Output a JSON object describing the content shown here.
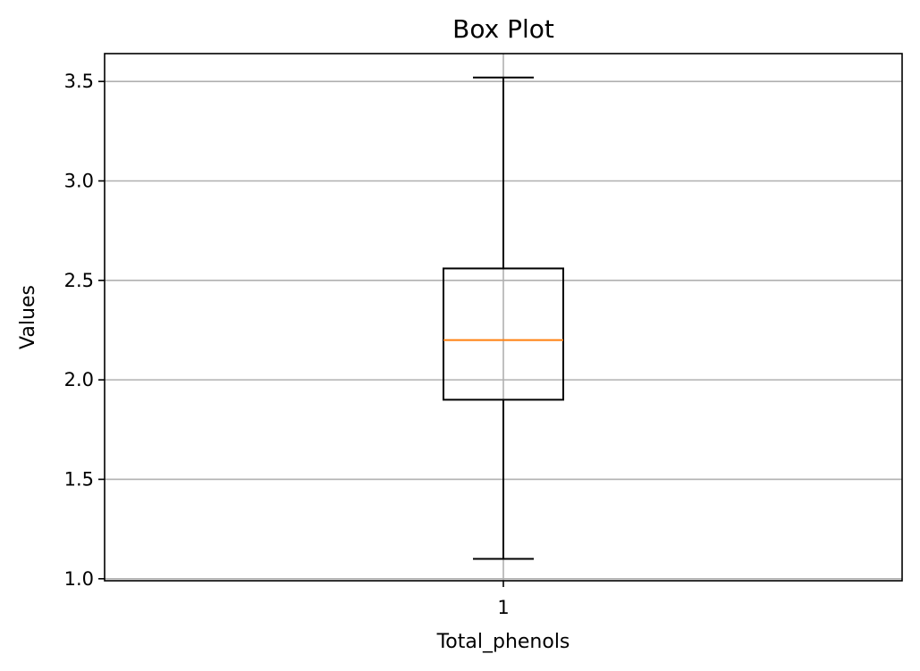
{
  "chart_data": {
    "type": "box",
    "title": "Box Plot",
    "xlabel": "Total_phenols",
    "ylabel": "Values",
    "categories": [
      "1"
    ],
    "boxes": [
      {
        "category": "1",
        "whisker_low": 1.1,
        "q1": 1.9,
        "median": 2.2,
        "q3": 2.56,
        "whisker_high": 3.52
      }
    ],
    "ylim": [
      0.99,
      3.64
    ],
    "yticks": [
      1.0,
      1.5,
      2.0,
      2.5,
      3.0,
      3.5
    ],
    "ytick_labels": [
      "1.0",
      "1.5",
      "2.0",
      "2.5",
      "3.0",
      "3.5"
    ],
    "grid": true,
    "colors": {
      "box": "#000000",
      "median": "#ff7f0e",
      "grid": "#b0b0b0"
    }
  }
}
